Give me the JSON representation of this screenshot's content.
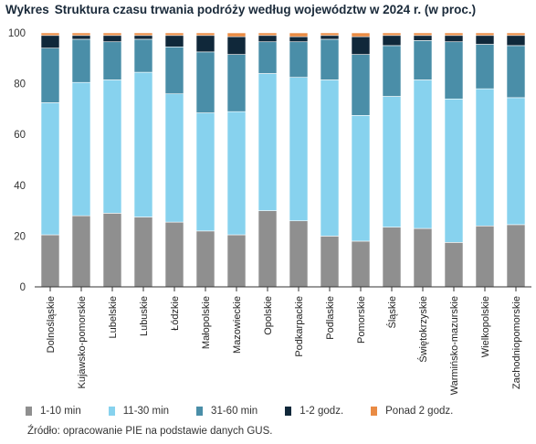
{
  "title_lead": "Wykres",
  "title": "Struktura czasu trwania podróży według województw w 2024 r. (w proc.)",
  "source": "Źródło: opracowanie  PIE na podstawie danych GUS.",
  "chart_data": {
    "type": "bar",
    "stacked": true,
    "categories": [
      "Dolnośląskie",
      "Kujawsko-pomorskie",
      "Lubelskie",
      "Lubuskie",
      "Łódzkie",
      "Małopolskie",
      "Mazowieckie",
      "Opolskie",
      "Podkarpackie",
      "Podlaskie",
      "Pomorskie",
      "Śląskie",
      "Świętokrzyskie",
      "Warmińsko-mazurskie",
      "Wielkopolskie",
      "Zachodniopomorskie"
    ],
    "series": [
      {
        "name": "1-10 min",
        "color": "#8f8f8f",
        "values": [
          20.5,
          28,
          29,
          27.5,
          25.5,
          22,
          20.5,
          30,
          26,
          20,
          18,
          23.5,
          23,
          17.5,
          24,
          24.5
        ]
      },
      {
        "name": "11-30 min",
        "color": "#87d2ee",
        "values": [
          52,
          52.5,
          52.5,
          57,
          50.5,
          46.5,
          48.5,
          54,
          56.5,
          61.5,
          49.5,
          51.5,
          58.5,
          56.5,
          54,
          50
        ]
      },
      {
        "name": "31-60 min",
        "color": "#4a8ea8",
        "values": [
          21.5,
          17,
          15,
          13,
          18.5,
          24,
          22.5,
          12.5,
          14,
          16,
          24,
          20,
          15.5,
          22.5,
          17.5,
          20.5
        ]
      },
      {
        "name": "1-2 godz.",
        "color": "#10283a",
        "values": [
          5,
          1.5,
          2.5,
          1.5,
          4.5,
          6.5,
          7,
          2.5,
          2,
          1.5,
          7,
          4,
          2,
          2.5,
          3.5,
          4
        ]
      },
      {
        "name": "Ponad 2 godz.",
        "color": "#e98b44",
        "values": [
          1,
          1,
          1,
          1,
          1,
          1,
          1.5,
          1,
          1.5,
          1,
          1.5,
          1,
          1,
          1,
          1,
          1
        ]
      }
    ],
    "ylim": [
      0,
      100
    ],
    "yticks": [
      0,
      20,
      40,
      60,
      80,
      100
    ],
    "legend": "bottom",
    "grid": false
  }
}
